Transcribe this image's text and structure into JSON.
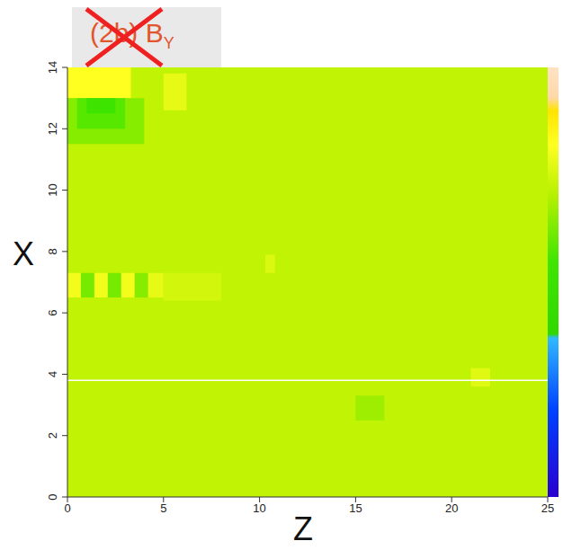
{
  "chart_data": {
    "type": "heatmap",
    "title": "(2b) B",
    "title_subscript": "Y",
    "x_label": "Z",
    "y_label": "X",
    "xlim": [
      0,
      25
    ],
    "xticks": [
      0,
      5,
      10,
      15,
      20,
      25
    ],
    "ylim": [
      0,
      14
    ],
    "yticks": [
      0,
      2,
      4,
      6,
      8,
      10,
      12,
      14
    ],
    "zlim": [
      0,
      1
    ],
    "colorscale": [
      [
        0,
        "#2a00d0"
      ],
      [
        0.2,
        "#0040ff"
      ],
      [
        0.37,
        "#30b8ff"
      ],
      [
        0.38,
        "#30d800"
      ],
      [
        0.55,
        "#40e600"
      ],
      [
        0.7,
        "#b4f000"
      ],
      [
        0.82,
        "#ffff20"
      ],
      [
        0.9,
        "#ffe400"
      ],
      [
        0.93,
        "#ffd8a8"
      ],
      [
        1,
        "#ffe2c4"
      ]
    ],
    "background": 0.72,
    "patches": [
      {
        "z": [
          0,
          3.3
        ],
        "x": [
          13,
          14
        ],
        "value": 0.82
      },
      {
        "z": [
          0,
          4
        ],
        "x": [
          11.5,
          13
        ],
        "value": 0.64
      },
      {
        "z": [
          0.5,
          3
        ],
        "x": [
          12,
          13
        ],
        "value": 0.58
      },
      {
        "z": [
          1,
          2.5
        ],
        "x": [
          12.5,
          13
        ],
        "value": 0.52
      },
      {
        "z": [
          5,
          6.2
        ],
        "x": [
          12.6,
          13.8
        ],
        "value": 0.78
      },
      {
        "z": [
          0,
          0.7
        ],
        "x": [
          6.5,
          7.3
        ],
        "value": 0.8
      },
      {
        "z": [
          0.7,
          1.4
        ],
        "x": [
          6.5,
          7.3
        ],
        "value": 0.62
      },
      {
        "z": [
          1.4,
          2.1
        ],
        "x": [
          6.5,
          7.3
        ],
        "value": 0.8
      },
      {
        "z": [
          2.1,
          2.8
        ],
        "x": [
          6.5,
          7.3
        ],
        "value": 0.62
      },
      {
        "z": [
          2.8,
          3.5
        ],
        "x": [
          6.5,
          7.3
        ],
        "value": 0.8
      },
      {
        "z": [
          3.5,
          4.2
        ],
        "x": [
          6.5,
          7.3
        ],
        "value": 0.64
      },
      {
        "z": [
          4.2,
          5
        ],
        "x": [
          6.5,
          7.3
        ],
        "value": 0.78
      },
      {
        "z": [
          5,
          8
        ],
        "x": [
          6.4,
          7.3
        ],
        "value": 0.75
      },
      {
        "z": [
          10.3,
          10.8
        ],
        "x": [
          7.3,
          7.9
        ],
        "value": 0.76
      },
      {
        "z": [
          15,
          16.5
        ],
        "x": [
          2.5,
          3.3
        ],
        "value": 0.67
      },
      {
        "z": [
          21,
          22
        ],
        "x": [
          3.6,
          4.2
        ],
        "value": 0.77
      }
    ],
    "reference_lines": [
      {
        "axis": "y",
        "value": 3.8,
        "color": "#ffffff"
      }
    ]
  }
}
